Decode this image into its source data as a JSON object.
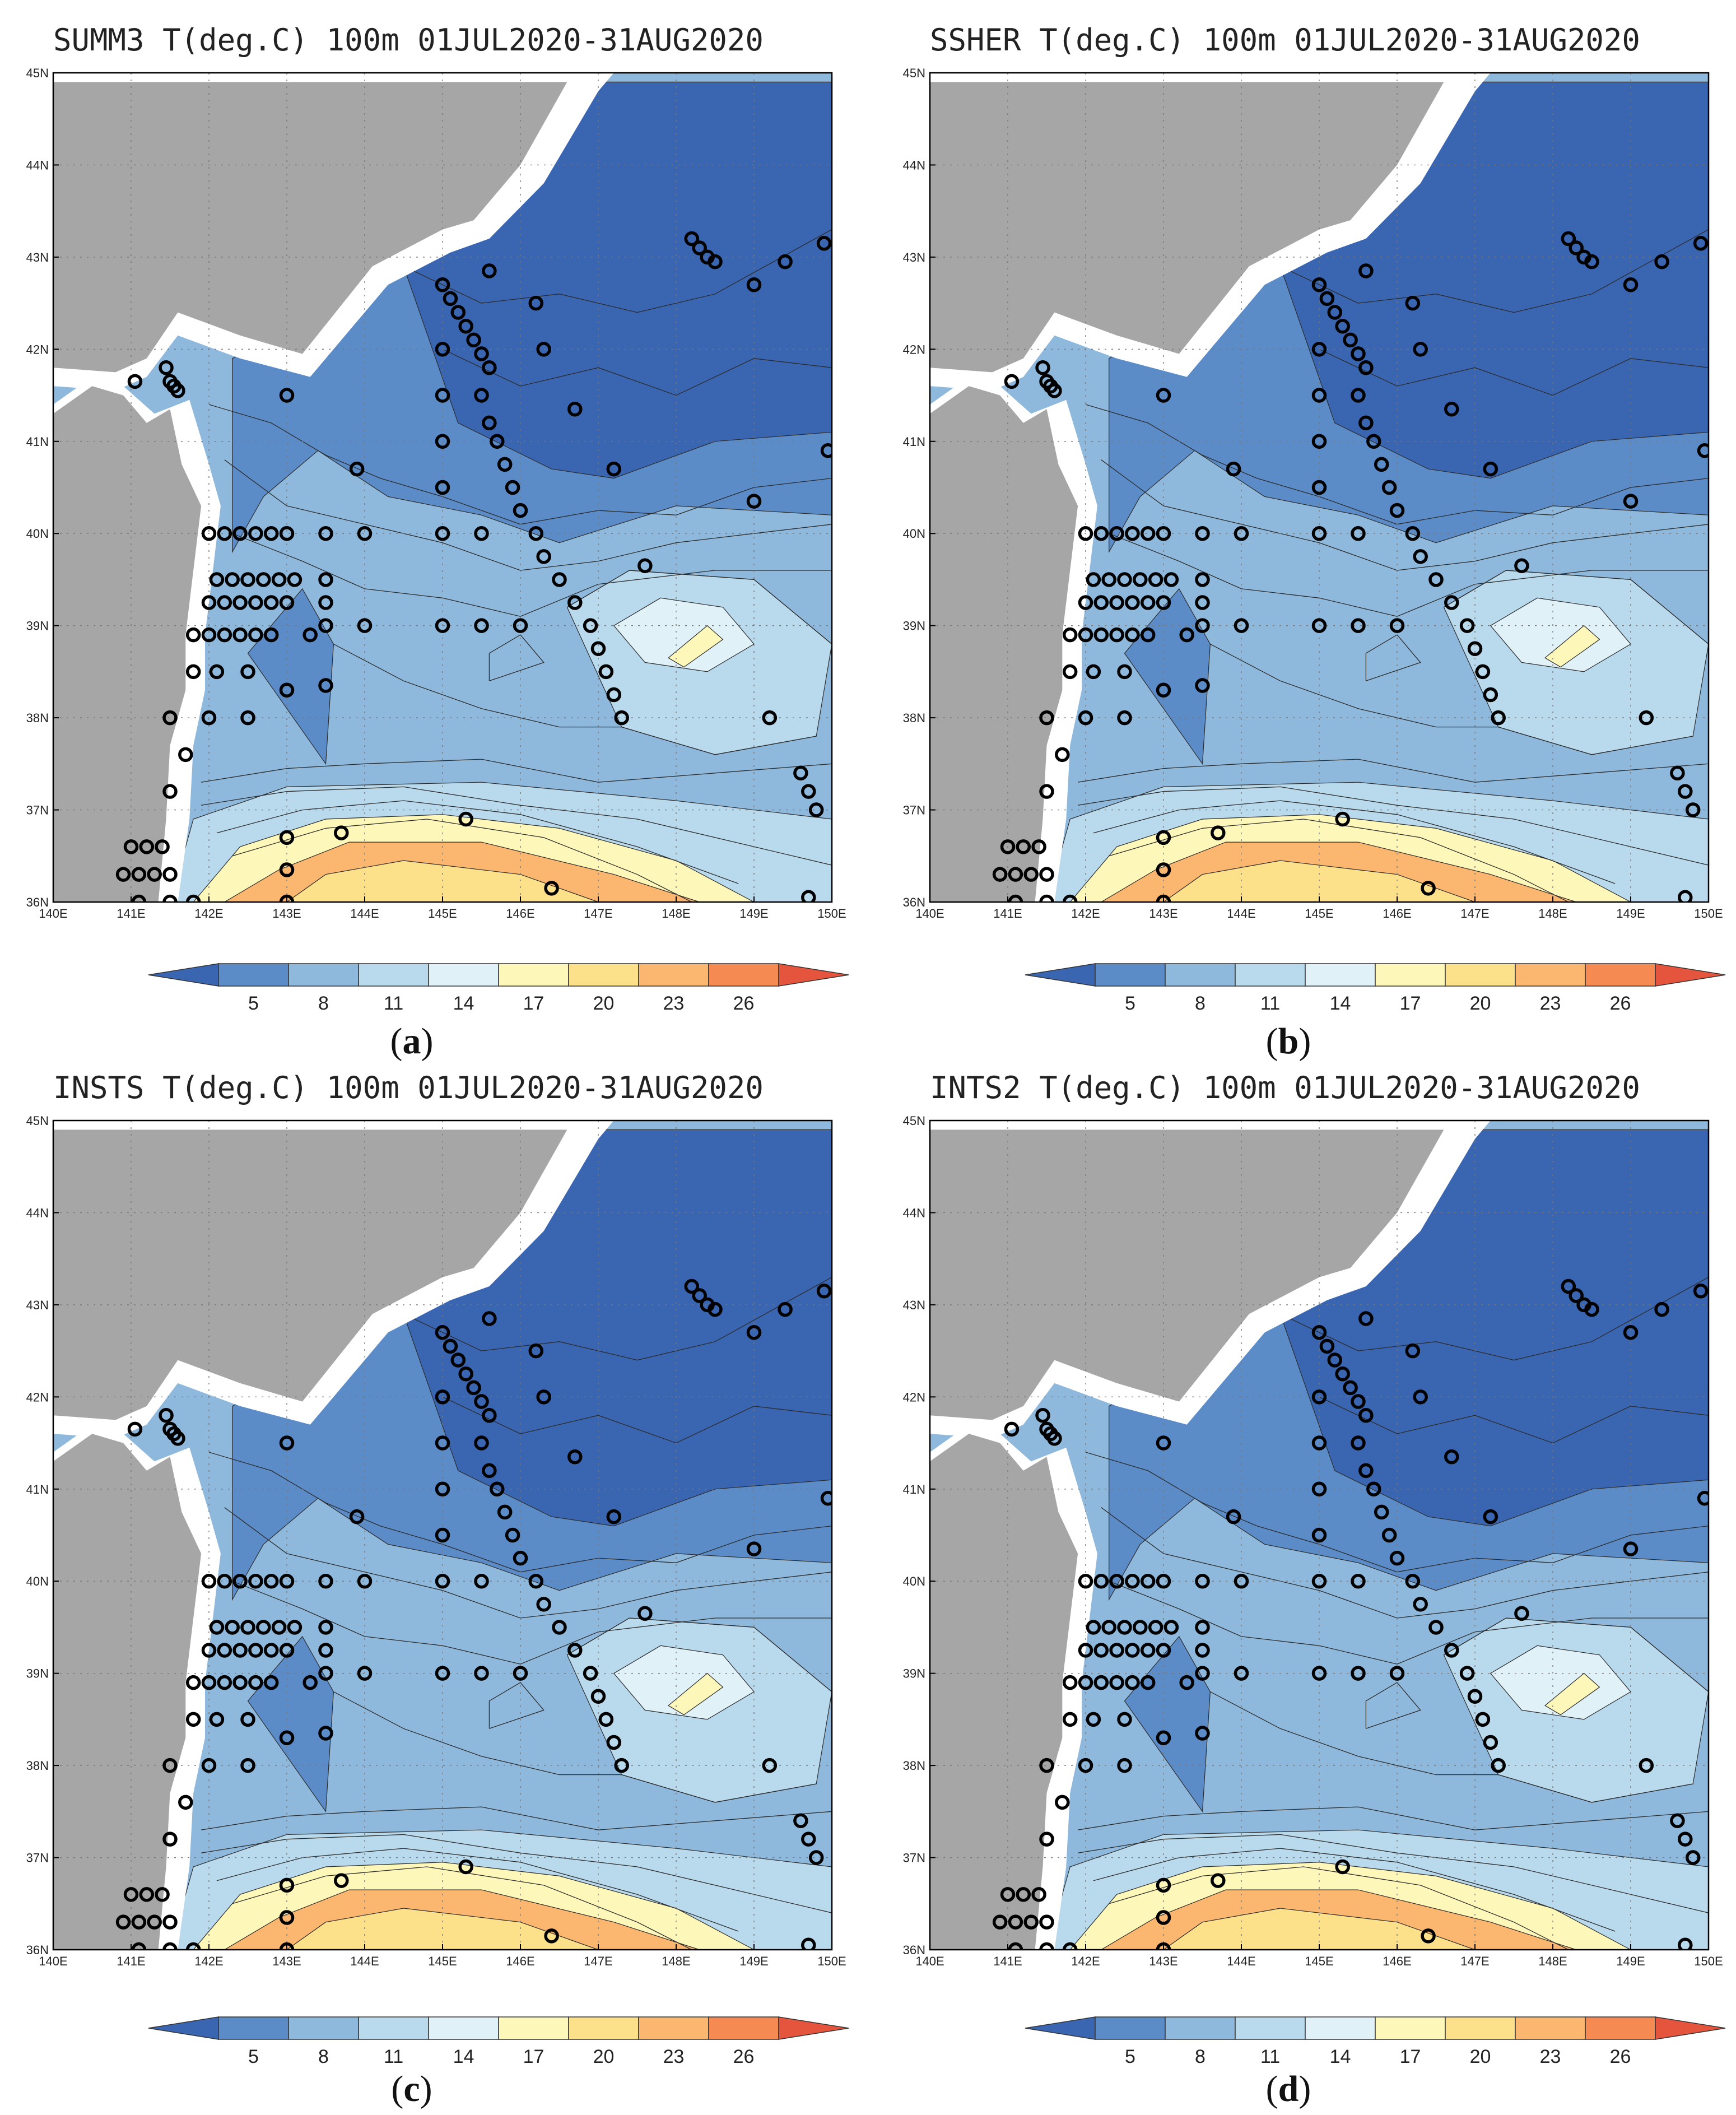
{
  "panels": [
    {
      "id": "a",
      "title": "SUMM3 T(deg.C) 100m 01JUL2020-31AUG2020",
      "letter": "a"
    },
    {
      "id": "b",
      "title": "SSHER T(deg.C) 100m 01JUL2020-31AUG2020",
      "letter": "b"
    },
    {
      "id": "c",
      "title": "INSTS T(deg.C) 100m 01JUL2020-31AUG2020",
      "letter": "c"
    },
    {
      "id": "d",
      "title": "INTS2 T(deg.C) 100m 01JUL2020-31AUG2020",
      "letter": "d"
    }
  ],
  "map": {
    "lon_range": [
      140,
      150
    ],
    "lat_range": [
      36,
      45
    ],
    "lon_ticks": [
      "140E",
      "141E",
      "142E",
      "143E",
      "144E",
      "145E",
      "146E",
      "147E",
      "148E",
      "149E",
      "150E"
    ],
    "lat_ticks": [
      "36N",
      "37N",
      "38N",
      "39N",
      "40N",
      "41N",
      "42N",
      "43N",
      "44N",
      "45N"
    ],
    "grid": "dotted",
    "land_color": "#a6a6a6",
    "coast_buffer_color": "#ffffff"
  },
  "colorbar": {
    "tick_labels": [
      "5",
      "8",
      "11",
      "14",
      "17",
      "20",
      "23",
      "26"
    ],
    "colors": [
      "#3a65b0",
      "#5b8cc8",
      "#8fb9dc",
      "#b9d9ec",
      "#e1f1f8",
      "#fdf7b9",
      "#fde08a",
      "#fbb670",
      "#f58a53",
      "#e5543c"
    ]
  },
  "observation_stations": [
    [
      141.05,
      41.65
    ],
    [
      141.45,
      41.8
    ],
    [
      141.5,
      41.65
    ],
    [
      141.55,
      41.6
    ],
    [
      141.6,
      41.55
    ],
    [
      143.0,
      41.5
    ],
    [
      143.9,
      40.7
    ],
    [
      142.0,
      40.0
    ],
    [
      142.2,
      40.0
    ],
    [
      142.4,
      40.0
    ],
    [
      142.6,
      40.0
    ],
    [
      142.8,
      40.0
    ],
    [
      143.0,
      40.0
    ],
    [
      143.5,
      40.0
    ],
    [
      144.0,
      40.0
    ],
    [
      145.0,
      40.0
    ],
    [
      145.5,
      40.0
    ],
    [
      142.1,
      39.5
    ],
    [
      142.3,
      39.5
    ],
    [
      142.5,
      39.5
    ],
    [
      142.7,
      39.5
    ],
    [
      142.9,
      39.5
    ],
    [
      143.1,
      39.5
    ],
    [
      143.5,
      39.5
    ],
    [
      142.0,
      39.25
    ],
    [
      142.2,
      39.25
    ],
    [
      142.4,
      39.25
    ],
    [
      142.6,
      39.25
    ],
    [
      142.8,
      39.25
    ],
    [
      143.0,
      39.25
    ],
    [
      143.5,
      39.25
    ],
    [
      141.8,
      38.9
    ],
    [
      142.0,
      38.9
    ],
    [
      142.2,
      38.9
    ],
    [
      142.4,
      38.9
    ],
    [
      142.6,
      38.9
    ],
    [
      142.8,
      38.9
    ],
    [
      143.3,
      38.9
    ],
    [
      143.5,
      39.0
    ],
    [
      144.0,
      39.0
    ],
    [
      145.0,
      39.0
    ],
    [
      145.5,
      39.0
    ],
    [
      146.0,
      39.0
    ],
    [
      141.8,
      38.5
    ],
    [
      142.1,
      38.5
    ],
    [
      142.5,
      38.5
    ],
    [
      143.0,
      38.3
    ],
    [
      143.5,
      38.35
    ],
    [
      141.5,
      38.0
    ],
    [
      142.0,
      38.0
    ],
    [
      142.5,
      38.0
    ],
    [
      141.7,
      37.6
    ],
    [
      141.5,
      37.2
    ],
    [
      141.0,
      36.6
    ],
    [
      141.2,
      36.6
    ],
    [
      141.4,
      36.6
    ],
    [
      140.9,
      36.3
    ],
    [
      141.1,
      36.3
    ],
    [
      141.3,
      36.3
    ],
    [
      141.5,
      36.3
    ],
    [
      141.1,
      36.0
    ],
    [
      141.5,
      36.0
    ],
    [
      141.8,
      36.0
    ],
    [
      143.0,
      36.7
    ],
    [
      143.0,
      36.35
    ],
    [
      143.0,
      36.0
    ],
    [
      143.7,
      36.75
    ],
    [
      145.3,
      36.9
    ],
    [
      146.4,
      36.15
    ],
    [
      145.0,
      42.7
    ],
    [
      145.1,
      42.55
    ],
    [
      145.2,
      42.4
    ],
    [
      145.3,
      42.25
    ],
    [
      145.4,
      42.1
    ],
    [
      145.5,
      41.95
    ],
    [
      145.6,
      41.8
    ],
    [
      145.0,
      42.0
    ],
    [
      145.0,
      41.5
    ],
    [
      145.0,
      41.0
    ],
    [
      145.0,
      40.5
    ],
    [
      145.5,
      41.5
    ],
    [
      145.6,
      41.2
    ],
    [
      145.7,
      41.0
    ],
    [
      145.8,
      40.75
    ],
    [
      145.9,
      40.5
    ],
    [
      146.0,
      40.25
    ],
    [
      146.2,
      40.0
    ],
    [
      146.3,
      39.75
    ],
    [
      146.5,
      39.5
    ],
    [
      146.7,
      39.25
    ],
    [
      146.9,
      39.0
    ],
    [
      147.0,
      38.75
    ],
    [
      147.1,
      38.5
    ],
    [
      147.2,
      38.25
    ],
    [
      147.3,
      38.0
    ],
    [
      147.6,
      39.65
    ],
    [
      145.6,
      42.85
    ],
    [
      146.2,
      42.5
    ],
    [
      146.3,
      42.0
    ],
    [
      146.7,
      41.35
    ],
    [
      147.2,
      40.7
    ],
    [
      148.2,
      43.2
    ],
    [
      148.3,
      43.1
    ],
    [
      148.4,
      43.0
    ],
    [
      148.5,
      42.95
    ],
    [
      149.0,
      42.7
    ],
    [
      149.4,
      42.95
    ],
    [
      149.9,
      43.15
    ],
    [
      149.95,
      40.9
    ],
    [
      149.0,
      40.35
    ],
    [
      149.2,
      38.0
    ],
    [
      149.6,
      37.4
    ],
    [
      149.7,
      37.2
    ],
    [
      149.8,
      37.0
    ],
    [
      149.7,
      36.05
    ]
  ]
}
